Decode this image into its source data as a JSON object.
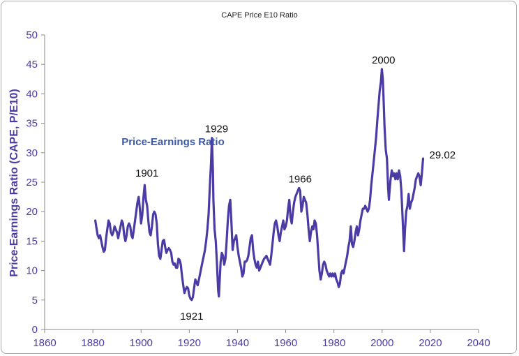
{
  "chart_data": {
    "type": "line",
    "title": "CAPE Price E10 Ratio",
    "xlabel": "",
    "ylabel": "Price-Earnings Ratio (CAPE, P/E10)",
    "xlim": [
      1860,
      2040
    ],
    "ylim": [
      0,
      50
    ],
    "x_ticks": [
      1860,
      1880,
      1900,
      1920,
      1940,
      1960,
      1980,
      2000,
      2020,
      2040
    ],
    "y_ticks": [
      0,
      5,
      10,
      15,
      20,
      25,
      30,
      35,
      40,
      45,
      50
    ],
    "grid": false,
    "legend_position": "top-left",
    "series": [
      {
        "name": "Price-Earnings Ratio",
        "color": "#4b3ba5",
        "points": [
          [
            1881.0,
            18.5
          ],
          [
            1881.5,
            17.2
          ],
          [
            1882.0,
            16.0
          ],
          [
            1882.5,
            15.5
          ],
          [
            1883.0,
            16.0
          ],
          [
            1883.5,
            15.0
          ],
          [
            1884.0,
            14.0
          ],
          [
            1884.5,
            13.2
          ],
          [
            1885.0,
            13.5
          ],
          [
            1885.5,
            15.5
          ],
          [
            1886.0,
            17.0
          ],
          [
            1886.5,
            18.5
          ],
          [
            1887.0,
            18.0
          ],
          [
            1887.5,
            16.5
          ],
          [
            1888.0,
            16.0
          ],
          [
            1888.5,
            16.5
          ],
          [
            1889.0,
            17.5
          ],
          [
            1889.5,
            17.0
          ],
          [
            1890.0,
            16.5
          ],
          [
            1890.5,
            15.5
          ],
          [
            1891.0,
            16.5
          ],
          [
            1891.5,
            17.5
          ],
          [
            1892.0,
            18.5
          ],
          [
            1892.5,
            18.0
          ],
          [
            1893.0,
            16.0
          ],
          [
            1893.5,
            15.0
          ],
          [
            1894.0,
            16.0
          ],
          [
            1894.5,
            17.5
          ],
          [
            1895.0,
            18.0
          ],
          [
            1895.5,
            17.5
          ],
          [
            1896.0,
            16.0
          ],
          [
            1896.5,
            15.5
          ],
          [
            1897.0,
            17.0
          ],
          [
            1897.5,
            18.5
          ],
          [
            1898.0,
            20.0
          ],
          [
            1898.5,
            21.5
          ],
          [
            1899.0,
            22.5
          ],
          [
            1899.5,
            20.5
          ],
          [
            1900.0,
            18.0
          ],
          [
            1900.5,
            19.5
          ],
          [
            1901.0,
            22.5
          ],
          [
            1901.5,
            24.5
          ],
          [
            1902.0,
            22.0
          ],
          [
            1902.5,
            21.0
          ],
          [
            1903.0,
            18.5
          ],
          [
            1903.5,
            16.5
          ],
          [
            1904.0,
            16.0
          ],
          [
            1904.5,
            17.5
          ],
          [
            1905.0,
            19.5
          ],
          [
            1905.5,
            20.0
          ],
          [
            1906.0,
            19.5
          ],
          [
            1906.5,
            18.0
          ],
          [
            1907.0,
            14.5
          ],
          [
            1907.5,
            12.5
          ],
          [
            1908.0,
            12.0
          ],
          [
            1908.5,
            13.5
          ],
          [
            1909.0,
            15.0
          ],
          [
            1909.5,
            15.2
          ],
          [
            1910.0,
            14.0
          ],
          [
            1910.5,
            13.0
          ],
          [
            1911.0,
            13.5
          ],
          [
            1911.5,
            13.8
          ],
          [
            1912.0,
            13.5
          ],
          [
            1912.5,
            13.0
          ],
          [
            1913.0,
            11.5
          ],
          [
            1913.5,
            11.0
          ],
          [
            1914.0,
            11.2
          ],
          [
            1914.5,
            10.5
          ],
          [
            1915.0,
            10.5
          ],
          [
            1915.5,
            12.0
          ],
          [
            1916.0,
            11.8
          ],
          [
            1916.5,
            11.0
          ],
          [
            1917.0,
            9.0
          ],
          [
            1917.5,
            7.5
          ],
          [
            1918.0,
            6.2
          ],
          [
            1918.5,
            6.8
          ],
          [
            1919.0,
            7.2
          ],
          [
            1919.5,
            7.0
          ],
          [
            1920.0,
            5.8
          ],
          [
            1920.5,
            5.2
          ],
          [
            1921.0,
            5.0
          ],
          [
            1921.5,
            5.5
          ],
          [
            1922.0,
            7.0
          ],
          [
            1922.5,
            8.5
          ],
          [
            1923.0,
            8.0
          ],
          [
            1923.5,
            7.5
          ],
          [
            1924.0,
            8.5
          ],
          [
            1924.5,
            9.5
          ],
          [
            1925.0,
            10.5
          ],
          [
            1925.5,
            11.5
          ],
          [
            1926.0,
            12.5
          ],
          [
            1926.5,
            13.5
          ],
          [
            1927.0,
            15.0
          ],
          [
            1927.5,
            17.0
          ],
          [
            1928.0,
            19.5
          ],
          [
            1928.5,
            24.0
          ],
          [
            1929.0,
            28.0
          ],
          [
            1929.4,
            32.5
          ],
          [
            1929.8,
            27.0
          ],
          [
            1930.0,
            22.0
          ],
          [
            1930.5,
            17.0
          ],
          [
            1931.0,
            15.0
          ],
          [
            1931.5,
            11.0
          ],
          [
            1932.0,
            6.5
          ],
          [
            1932.3,
            5.6
          ],
          [
            1932.7,
            9.0
          ],
          [
            1933.0,
            11.5
          ],
          [
            1933.5,
            13.0
          ],
          [
            1934.0,
            12.5
          ],
          [
            1934.5,
            11.0
          ],
          [
            1935.0,
            12.0
          ],
          [
            1935.5,
            15.0
          ],
          [
            1936.0,
            18.5
          ],
          [
            1936.5,
            21.0
          ],
          [
            1937.0,
            22.0
          ],
          [
            1937.5,
            18.0
          ],
          [
            1938.0,
            13.5
          ],
          [
            1938.5,
            15.0
          ],
          [
            1939.0,
            15.5
          ],
          [
            1939.5,
            16.0
          ],
          [
            1940.0,
            14.0
          ],
          [
            1940.5,
            12.5
          ],
          [
            1941.0,
            11.5
          ],
          [
            1941.5,
            10.5
          ],
          [
            1942.0,
            9.0
          ],
          [
            1942.5,
            9.5
          ],
          [
            1943.0,
            11.5
          ],
          [
            1943.5,
            11.5
          ],
          [
            1944.0,
            11.8
          ],
          [
            1944.5,
            12.5
          ],
          [
            1945.0,
            14.0
          ],
          [
            1945.5,
            15.5
          ],
          [
            1946.0,
            16.0
          ],
          [
            1946.5,
            13.5
          ],
          [
            1947.0,
            12.0
          ],
          [
            1947.5,
            11.0
          ],
          [
            1948.0,
            10.5
          ],
          [
            1948.5,
            11.5
          ],
          [
            1949.0,
            10.0
          ],
          [
            1949.5,
            10.5
          ],
          [
            1950.0,
            11.0
          ],
          [
            1950.5,
            11.5
          ],
          [
            1951.0,
            12.0
          ],
          [
            1951.5,
            12.2
          ],
          [
            1952.0,
            12.5
          ],
          [
            1952.5,
            12.0
          ],
          [
            1953.0,
            11.5
          ],
          [
            1953.5,
            11.0
          ],
          [
            1954.0,
            12.5
          ],
          [
            1954.5,
            14.5
          ],
          [
            1955.0,
            16.5
          ],
          [
            1955.5,
            18.0
          ],
          [
            1956.0,
            18.5
          ],
          [
            1956.5,
            17.5
          ],
          [
            1957.0,
            16.0
          ],
          [
            1957.5,
            15.0
          ],
          [
            1958.0,
            16.5
          ],
          [
            1958.5,
            17.5
          ],
          [
            1959.0,
            18.5
          ],
          [
            1959.5,
            17.0
          ],
          [
            1960.0,
            17.5
          ],
          [
            1960.5,
            18.5
          ],
          [
            1961.0,
            20.5
          ],
          [
            1961.5,
            22.0
          ],
          [
            1962.0,
            19.0
          ],
          [
            1962.5,
            18.0
          ],
          [
            1963.0,
            20.0
          ],
          [
            1963.5,
            21.5
          ],
          [
            1964.0,
            22.5
          ],
          [
            1964.5,
            23.0
          ],
          [
            1965.0,
            23.5
          ],
          [
            1965.5,
            24.0
          ],
          [
            1966.0,
            23.5
          ],
          [
            1966.5,
            20.0
          ],
          [
            1967.0,
            21.0
          ],
          [
            1967.5,
            22.5
          ],
          [
            1968.0,
            22.0
          ],
          [
            1968.5,
            21.5
          ],
          [
            1969.0,
            19.5
          ],
          [
            1969.5,
            17.0
          ],
          [
            1970.0,
            15.0
          ],
          [
            1970.5,
            16.5
          ],
          [
            1971.0,
            17.5
          ],
          [
            1971.5,
            17.0
          ],
          [
            1972.0,
            18.5
          ],
          [
            1972.5,
            18.0
          ],
          [
            1973.0,
            16.0
          ],
          [
            1973.5,
            13.0
          ],
          [
            1974.0,
            10.0
          ],
          [
            1974.5,
            8.5
          ],
          [
            1975.0,
            9.5
          ],
          [
            1975.5,
            11.0
          ],
          [
            1976.0,
            11.5
          ],
          [
            1976.5,
            11.0
          ],
          [
            1977.0,
            10.0
          ],
          [
            1977.5,
            9.5
          ],
          [
            1978.0,
            9.0
          ],
          [
            1978.5,
            9.5
          ],
          [
            1979.0,
            9.0
          ],
          [
            1979.5,
            9.5
          ],
          [
            1980.0,
            9.0
          ],
          [
            1980.5,
            9.5
          ],
          [
            1981.0,
            8.5
          ],
          [
            1981.5,
            8.0
          ],
          [
            1982.0,
            7.2
          ],
          [
            1982.5,
            7.8
          ],
          [
            1983.0,
            9.5
          ],
          [
            1983.5,
            10.0
          ],
          [
            1984.0,
            9.5
          ],
          [
            1984.5,
            10.5
          ],
          [
            1985.0,
            11.5
          ],
          [
            1985.5,
            12.5
          ],
          [
            1986.0,
            14.0
          ],
          [
            1986.5,
            15.0
          ],
          [
            1987.0,
            17.5
          ],
          [
            1987.5,
            14.5
          ],
          [
            1988.0,
            14.0
          ],
          [
            1988.5,
            15.0
          ],
          [
            1989.0,
            16.5
          ],
          [
            1989.5,
            17.5
          ],
          [
            1990.0,
            16.0
          ],
          [
            1990.5,
            17.0
          ],
          [
            1991.0,
            18.5
          ],
          [
            1991.5,
            19.5
          ],
          [
            1992.0,
            20.5
          ],
          [
            1992.5,
            20.5
          ],
          [
            1993.0,
            21.0
          ],
          [
            1993.5,
            20.5
          ],
          [
            1994.0,
            20.0
          ],
          [
            1994.5,
            20.5
          ],
          [
            1995.0,
            22.0
          ],
          [
            1995.5,
            24.5
          ],
          [
            1996.0,
            26.5
          ],
          [
            1996.5,
            28.5
          ],
          [
            1997.0,
            30.5
          ],
          [
            1997.5,
            32.5
          ],
          [
            1998.0,
            35.5
          ],
          [
            1998.5,
            38.0
          ],
          [
            1999.0,
            40.5
          ],
          [
            1999.5,
            42.0
          ],
          [
            1999.9,
            44.2
          ],
          [
            2000.3,
            42.5
          ],
          [
            2000.7,
            38.0
          ],
          [
            2001.0,
            34.5
          ],
          [
            2001.5,
            30.5
          ],
          [
            2002.0,
            29.0
          ],
          [
            2002.5,
            24.0
          ],
          [
            2002.8,
            22.0
          ],
          [
            2003.0,
            23.0
          ],
          [
            2003.5,
            25.5
          ],
          [
            2004.0,
            27.0
          ],
          [
            2004.5,
            26.0
          ],
          [
            2005.0,
            26.5
          ],
          [
            2005.5,
            25.5
          ],
          [
            2006.0,
            26.5
          ],
          [
            2006.5,
            25.5
          ],
          [
            2007.0,
            27.0
          ],
          [
            2007.5,
            26.0
          ],
          [
            2008.0,
            23.5
          ],
          [
            2008.5,
            19.0
          ],
          [
            2008.8,
            16.0
          ],
          [
            2009.1,
            13.3
          ],
          [
            2009.5,
            17.0
          ],
          [
            2010.0,
            20.0
          ],
          [
            2010.5,
            21.0
          ],
          [
            2011.0,
            23.0
          ],
          [
            2011.5,
            20.5
          ],
          [
            2012.0,
            21.5
          ],
          [
            2012.5,
            22.0
          ],
          [
            2013.0,
            23.0
          ],
          [
            2013.5,
            24.0
          ],
          [
            2014.0,
            25.5
          ],
          [
            2014.5,
            26.0
          ],
          [
            2015.0,
            26.5
          ],
          [
            2015.5,
            26.0
          ],
          [
            2016.0,
            24.5
          ],
          [
            2016.5,
            26.5
          ],
          [
            2017.0,
            29.02
          ]
        ]
      }
    ],
    "annotations": [
      {
        "label": "1901",
        "x": 1901,
        "y": 25.0
      },
      {
        "label": "1921",
        "x": 1921,
        "y": 5.0
      },
      {
        "label": "1929",
        "x": 1929,
        "y": 32.5
      },
      {
        "label": "1966",
        "x": 1966,
        "y": 24.0
      },
      {
        "label": "2000",
        "x": 2000,
        "y": 44.2
      },
      {
        "label": "29.02",
        "x": 2017,
        "y": 29.02
      }
    ]
  }
}
